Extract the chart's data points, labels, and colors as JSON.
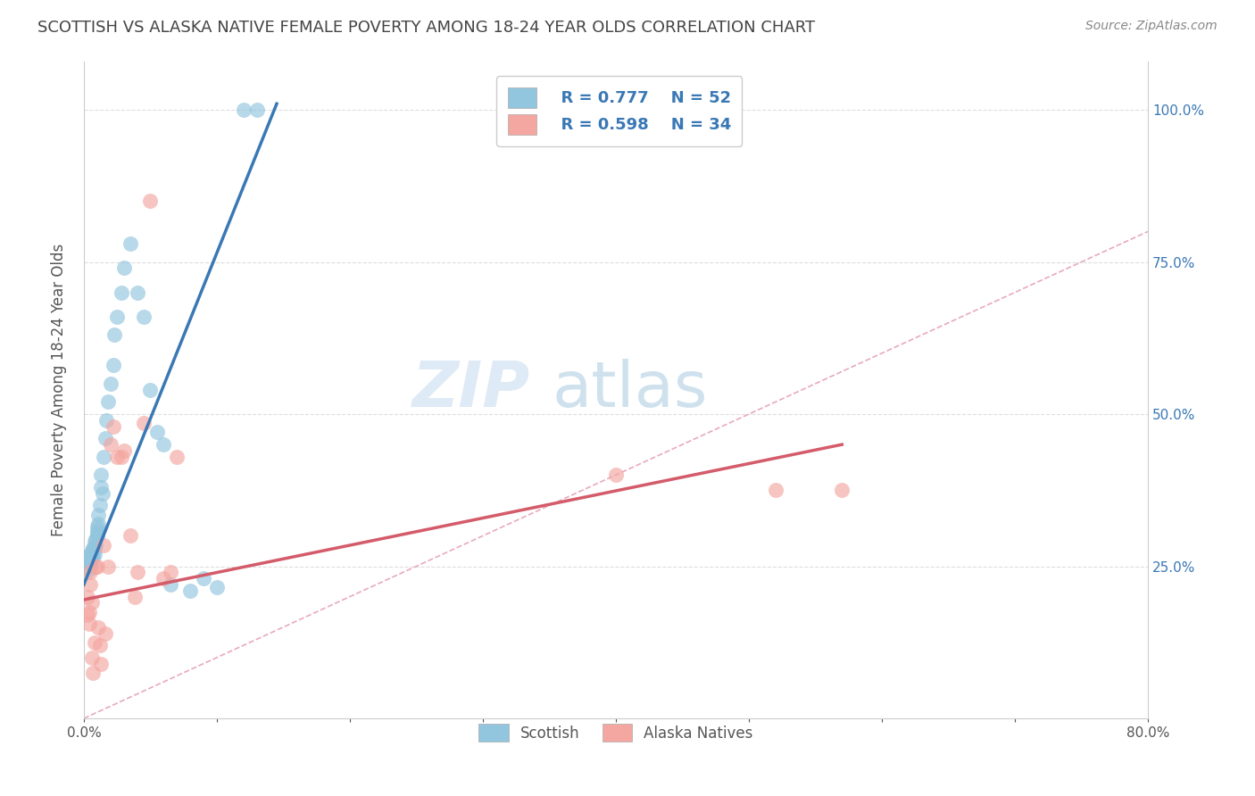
{
  "title": "SCOTTISH VS ALASKA NATIVE FEMALE POVERTY AMONG 18-24 YEAR OLDS CORRELATION CHART",
  "source": "Source: ZipAtlas.com",
  "ylabel": "Female Poverty Among 18-24 Year Olds",
  "xlim": [
    0.0,
    0.8
  ],
  "ylim": [
    0.0,
    1.08
  ],
  "x_ticks": [
    0.0,
    0.1,
    0.2,
    0.3,
    0.4,
    0.5,
    0.6,
    0.7,
    0.8
  ],
  "x_tick_labels": [
    "0.0%",
    "",
    "",
    "",
    "",
    "",
    "",
    "",
    "80.0%"
  ],
  "y_ticks": [
    0.25,
    0.5,
    0.75,
    1.0
  ],
  "y_tick_labels": [
    "25.0%",
    "50.0%",
    "75.0%",
    "100.0%"
  ],
  "legend_r1": "R = 0.777",
  "legend_n1": "N = 52",
  "legend_r2": "R = 0.598",
  "legend_n2": "N = 34",
  "legend_label1": "Scottish",
  "legend_label2": "Alaska Natives",
  "blue_color": "#92C5DE",
  "pink_color": "#F4A6A0",
  "blue_line_color": "#3A78B5",
  "pink_line_color": "#D45B6A",
  "diag_color": "#E8AABB",
  "watermark_zip": "ZIP",
  "watermark_atlas": "atlas",
  "scottish_x": [
    0.003,
    0.003,
    0.004,
    0.004,
    0.004,
    0.005,
    0.005,
    0.005,
    0.005,
    0.006,
    0.006,
    0.006,
    0.007,
    0.007,
    0.008,
    0.008,
    0.008,
    0.008,
    0.009,
    0.009,
    0.01,
    0.01,
    0.01,
    0.01,
    0.011,
    0.011,
    0.012,
    0.013,
    0.013,
    0.014,
    0.015,
    0.016,
    0.017,
    0.018,
    0.02,
    0.022,
    0.023,
    0.025,
    0.028,
    0.03,
    0.035,
    0.04,
    0.045,
    0.05,
    0.055,
    0.06,
    0.065,
    0.08,
    0.09,
    0.1,
    0.12,
    0.13
  ],
  "scottish_y": [
    0.255,
    0.26,
    0.25,
    0.245,
    0.265,
    0.27,
    0.258,
    0.262,
    0.253,
    0.268,
    0.275,
    0.272,
    0.28,
    0.265,
    0.27,
    0.278,
    0.282,
    0.29,
    0.295,
    0.285,
    0.3,
    0.31,
    0.305,
    0.315,
    0.32,
    0.335,
    0.35,
    0.38,
    0.4,
    0.37,
    0.43,
    0.46,
    0.49,
    0.52,
    0.55,
    0.58,
    0.63,
    0.66,
    0.7,
    0.74,
    0.78,
    0.7,
    0.66,
    0.54,
    0.47,
    0.45,
    0.22,
    0.21,
    0.23,
    0.215,
    1.0,
    1.0
  ],
  "alaska_x": [
    0.003,
    0.003,
    0.004,
    0.004,
    0.005,
    0.005,
    0.006,
    0.006,
    0.007,
    0.008,
    0.009,
    0.01,
    0.011,
    0.012,
    0.013,
    0.015,
    0.016,
    0.018,
    0.02,
    0.022,
    0.025,
    0.028,
    0.03,
    0.035,
    0.038,
    0.04,
    0.045,
    0.05,
    0.06,
    0.065,
    0.07,
    0.4,
    0.52,
    0.57
  ],
  "alaska_y": [
    0.2,
    0.17,
    0.175,
    0.155,
    0.22,
    0.24,
    0.19,
    0.1,
    0.075,
    0.125,
    0.25,
    0.25,
    0.15,
    0.12,
    0.09,
    0.285,
    0.14,
    0.25,
    0.45,
    0.48,
    0.43,
    0.43,
    0.44,
    0.3,
    0.2,
    0.24,
    0.485,
    0.85,
    0.23,
    0.24,
    0.43,
    0.4,
    0.375,
    0.375
  ],
  "blue_line_x": [
    0.0,
    0.145
  ],
  "blue_line_y": [
    0.22,
    1.01
  ],
  "pink_line_x": [
    0.0,
    0.57
  ],
  "pink_line_y": [
    0.195,
    0.45
  ]
}
